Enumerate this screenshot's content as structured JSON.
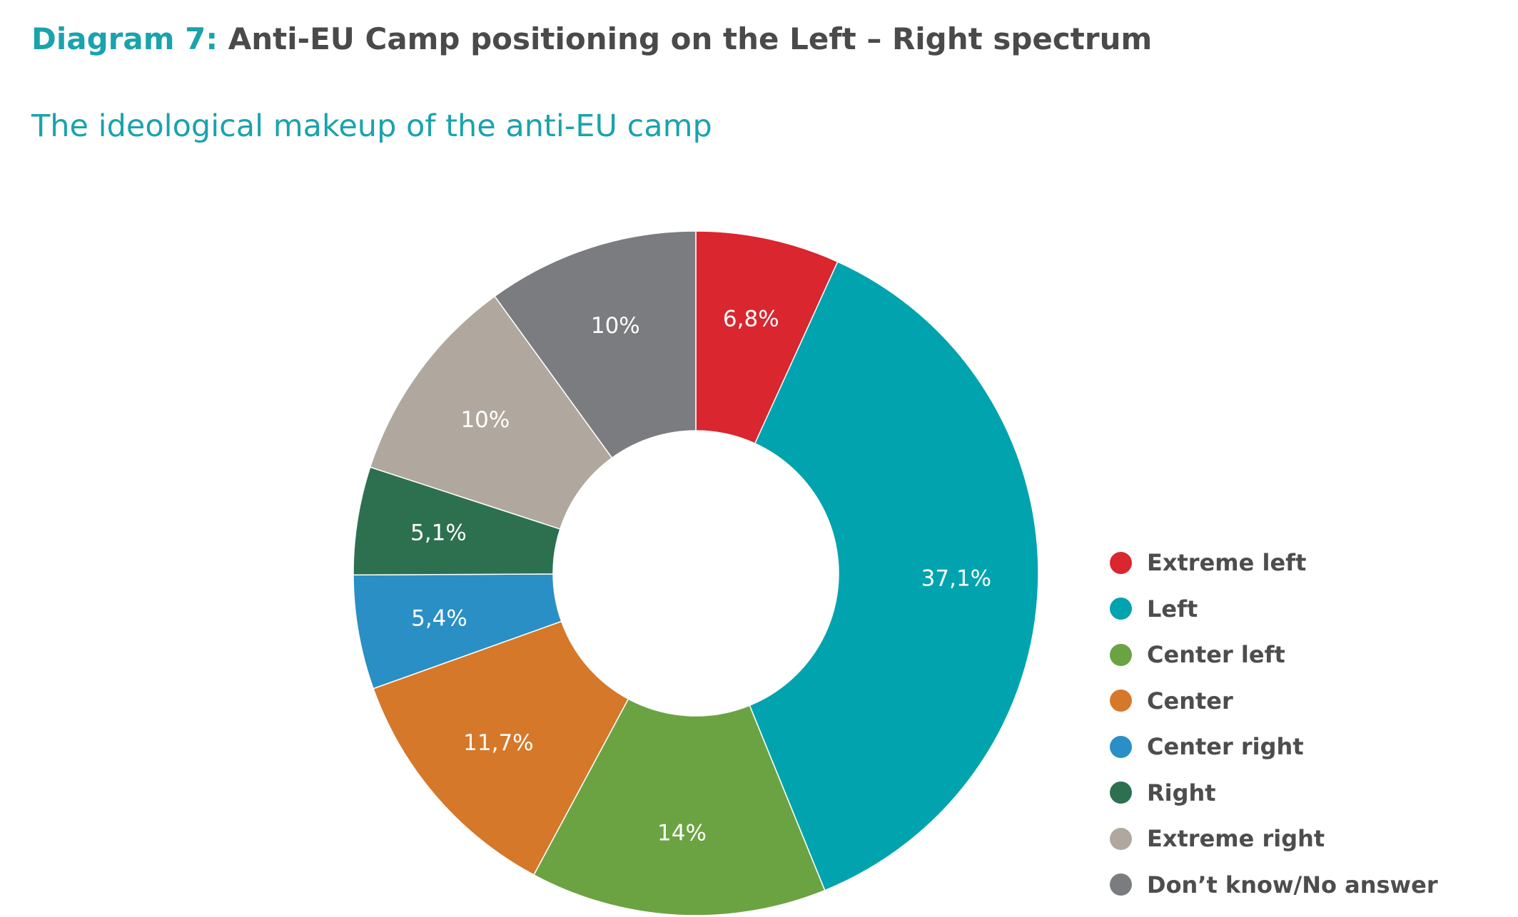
{
  "header": {
    "title_prefix": "Diagram 7:",
    "title_text": "Anti-EU Camp positioning on the Left – Right spectrum",
    "subtitle": "The ideological makeup of the anti-EU camp"
  },
  "chart_data": {
    "type": "pie",
    "variant": "donut",
    "title": "Anti-EU Camp positioning on the Left – Right spectrum",
    "subtitle": "The ideological makeup of the anti-EU camp",
    "legend_position": "right-bottom",
    "categories": [
      "Extreme left",
      "Left",
      "Center left",
      "Center",
      "Center right",
      "Right",
      "Extreme right",
      "Don’t know/No answer"
    ],
    "values": [
      6.8,
      37.1,
      14,
      11.7,
      5.4,
      5.1,
      10,
      10
    ],
    "data_labels": [
      "6,8%",
      "37,1%",
      "14%",
      "11,7%",
      "5,4%",
      "5,1%",
      "10%",
      "10%"
    ],
    "colors": [
      "#d9262f",
      "#00a3ae",
      "#6ba342",
      "#d5782a",
      "#2a8fc4",
      "#2c7050",
      "#b0a89f",
      "#7b7c80"
    ]
  }
}
